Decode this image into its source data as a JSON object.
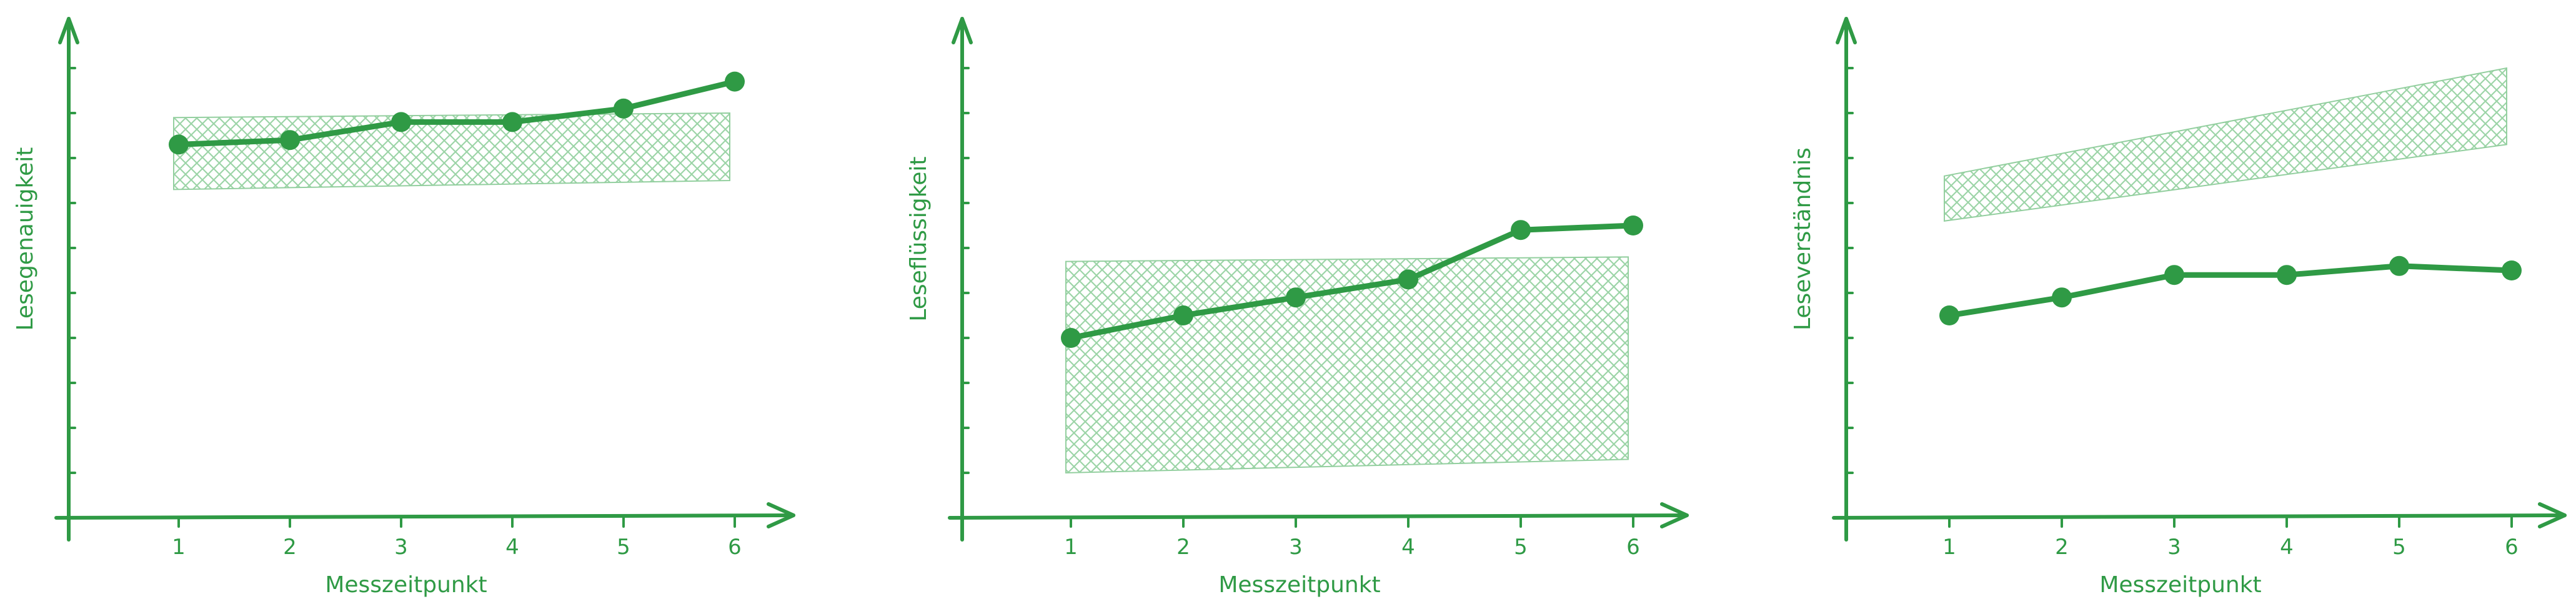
{
  "chart_data": [
    {
      "type": "line",
      "title": "",
      "xlabel": "Messzeitpunkt",
      "ylabel": "Lesegenauigkeit",
      "x": [
        1,
        2,
        3,
        4,
        5,
        6
      ],
      "categories": [
        "1",
        "2",
        "3",
        "4",
        "5",
        "6"
      ],
      "series": [
        {
          "values": [
            8.3,
            8.4,
            8.8,
            8.8,
            9.1,
            9.7
          ]
        }
      ],
      "band": {
        "x": [
          1,
          6
        ],
        "lower": [
          7.3,
          7.5
        ],
        "upper": [
          8.9,
          9.0
        ]
      },
      "ylim": [
        0,
        11
      ],
      "ytick_count": 10,
      "grid": false,
      "colors": {
        "line": "#2f9a45",
        "band": "#8fcf9b"
      }
    },
    {
      "type": "line",
      "title": "",
      "xlabel": "Messzeitpunkt",
      "ylabel": "Leseflüssigkeit",
      "x": [
        1,
        2,
        3,
        4,
        5,
        6
      ],
      "categories": [
        "1",
        "2",
        "3",
        "4",
        "5",
        "6"
      ],
      "series": [
        {
          "values": [
            4.0,
            4.5,
            4.9,
            5.3,
            6.4,
            6.5
          ]
        }
      ],
      "band": {
        "x": [
          1,
          6
        ],
        "lower": [
          1.0,
          1.3
        ],
        "upper": [
          5.7,
          5.8
        ]
      },
      "ylim": [
        0,
        11
      ],
      "ytick_count": 10,
      "grid": false,
      "colors": {
        "line": "#2f9a45",
        "band": "#8fcf9b"
      }
    },
    {
      "type": "line",
      "title": "",
      "xlabel": "Messzeitpunkt",
      "ylabel": "Leseverständnis",
      "x": [
        1,
        2,
        3,
        4,
        5,
        6
      ],
      "categories": [
        "1",
        "2",
        "3",
        "4",
        "5",
        "6"
      ],
      "series": [
        {
          "values": [
            4.5,
            4.9,
            5.4,
            5.4,
            5.6,
            5.5
          ]
        }
      ],
      "band": {
        "x": [
          1,
          6
        ],
        "lower": [
          6.6,
          8.3
        ],
        "upper": [
          7.6,
          10.0
        ]
      },
      "ylim": [
        0,
        11
      ],
      "ytick_count": 10,
      "grid": false,
      "colors": {
        "line": "#2f9a45",
        "band": "#8fcf9b"
      }
    }
  ]
}
